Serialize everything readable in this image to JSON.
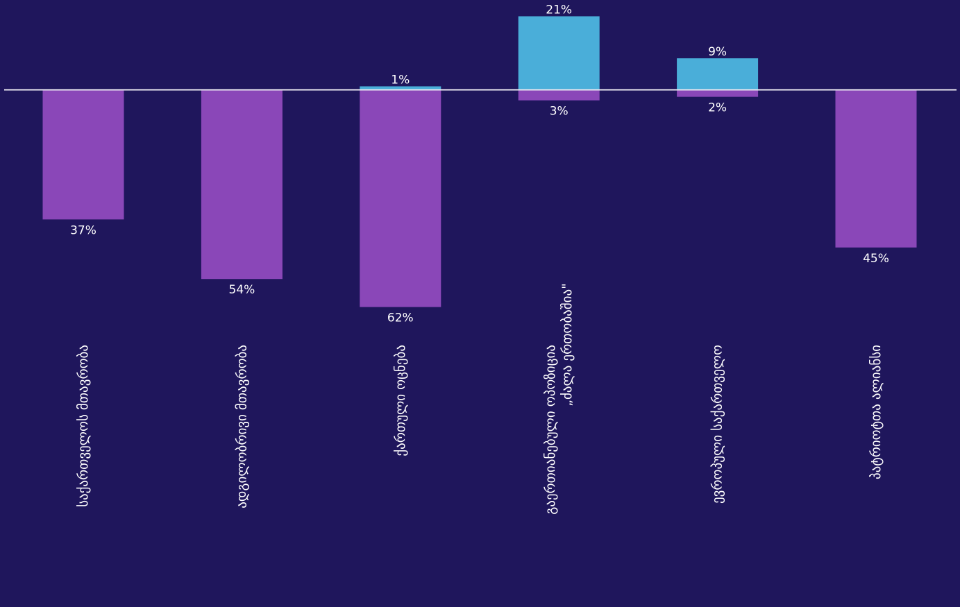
{
  "chart_data": {
    "type": "bar",
    "categories": [
      "საქართველოს მთავრობა",
      "ადგილობრივი მთავრობა",
      "ქართული ოცნება",
      "გაერთიანებული ოპოზიცია „ძალა ერთობაშია\"",
      "ევროპული საქართველო",
      "პატრიოტთა ალიანსი"
    ],
    "series": [
      {
        "values": [
          0,
          0,
          1,
          21,
          9,
          0
        ],
        "color": "#4aaed9"
      },
      {
        "values": [
          -37,
          -54,
          -62,
          -3,
          -2,
          -45
        ],
        "color": "#8a47b8"
      }
    ],
    "value_labels": {
      "positive": [
        "",
        "",
        "1%",
        "21%",
        "9%",
        ""
      ],
      "negative": [
        "37%",
        "54%",
        "62%",
        "3%",
        "2%",
        "45%"
      ]
    },
    "ylim": [
      -62,
      21
    ],
    "grid": false,
    "legend": "none",
    "baseline_color": "#e8e6f0"
  }
}
